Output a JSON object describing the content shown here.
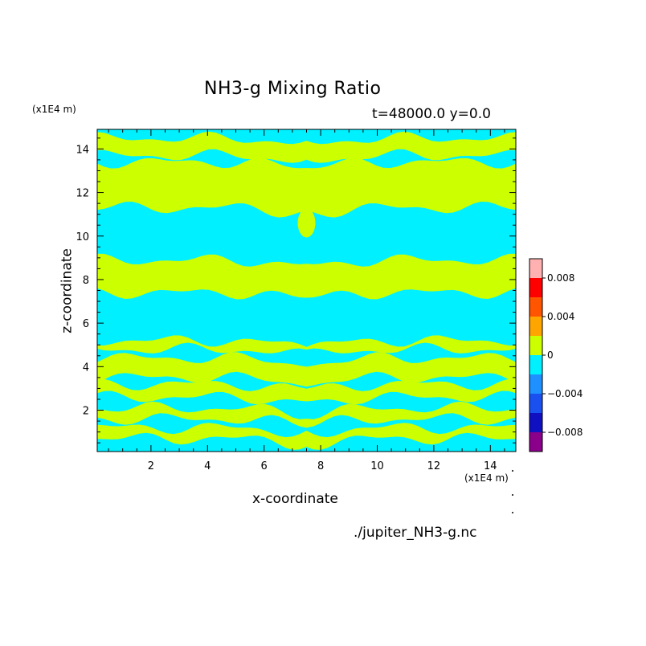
{
  "chart_data": {
    "type": "heatmap",
    "title": "NH3-g Mixing Ratio",
    "subtitle": "t=48000.0 y=0.0",
    "xlabel": "x-coordinate",
    "ylabel": "z-coordinate",
    "x_unit": "(x1E4 m)",
    "y_unit": "(x1E4 m)",
    "xlim": [
      0.1,
      14.9
    ],
    "ylim": [
      0.1,
      14.9
    ],
    "x_ticks": [
      2,
      4,
      6,
      8,
      10,
      12,
      14
    ],
    "y_ticks": [
      2,
      4,
      6,
      8,
      10,
      12,
      14
    ],
    "x_tick_labels": [
      "2",
      "4",
      "6",
      "8",
      "10",
      "12",
      "14"
    ],
    "y_tick_labels": [
      "2",
      "4",
      "6",
      "8",
      "10",
      "12",
      "14"
    ],
    "grid": false,
    "colorbar": {
      "levels": [
        -0.01,
        -0.008,
        -0.006,
        -0.004,
        -0.002,
        0,
        0.002,
        0.004,
        0.006,
        0.008,
        0.01
      ],
      "colors": [
        "#8b008b",
        "#1010c0",
        "#1a50f0",
        "#1e90ff",
        "#00f0ff",
        "#ccff00",
        "#ffa500",
        "#ff5500",
        "#ff0000",
        "#ffb0b0"
      ],
      "tick_values": [
        -0.008,
        -0.004,
        0,
        0.004,
        0.008
      ],
      "tick_labels": [
        "−0.008",
        "−0.004",
        "0",
        "0.004",
        "0.008"
      ]
    },
    "field_description_values": {
      "negative_level_color": "#00f0ff",
      "positive_level_color": "#ccff00",
      "symmetry_axis_x": 7.5
    },
    "bands": [
      {
        "z": [
          14.5,
          14.9
        ],
        "level": "negative"
      },
      {
        "z": [
          13.7,
          14.5
        ],
        "level": "positive"
      },
      {
        "z": [
          13.4,
          13.7
        ],
        "level": "negative"
      },
      {
        "z": [
          11.3,
          13.4
        ],
        "level": "positive"
      },
      {
        "z": [
          8.9,
          11.3
        ],
        "level": "negative"
      },
      {
        "z": [
          7.4,
          8.9
        ],
        "level": "positive"
      },
      {
        "z": [
          5.2,
          7.4
        ],
        "level": "negative"
      },
      {
        "z": [
          4.8,
          5.2
        ],
        "level": "positive"
      },
      {
        "z": [
          4.4,
          4.8
        ],
        "level": "negative"
      },
      {
        "z": [
          3.5,
          4.4
        ],
        "level": "positive"
      },
      {
        "z": [
          3.2,
          3.5
        ],
        "level": "negative"
      },
      {
        "z": [
          2.6,
          3.2
        ],
        "level": "positive"
      },
      {
        "z": [
          2.1,
          2.6
        ],
        "level": "negative"
      },
      {
        "z": [
          1.6,
          2.1
        ],
        "level": "positive"
      },
      {
        "z": [
          1.2,
          1.6
        ],
        "level": "negative"
      },
      {
        "z": [
          0.7,
          1.2
        ],
        "level": "positive"
      },
      {
        "z": [
          0.1,
          0.7
        ],
        "level": "negative"
      }
    ]
  },
  "footer": {
    "source": "./jupiter_NH3-g.nc"
  }
}
